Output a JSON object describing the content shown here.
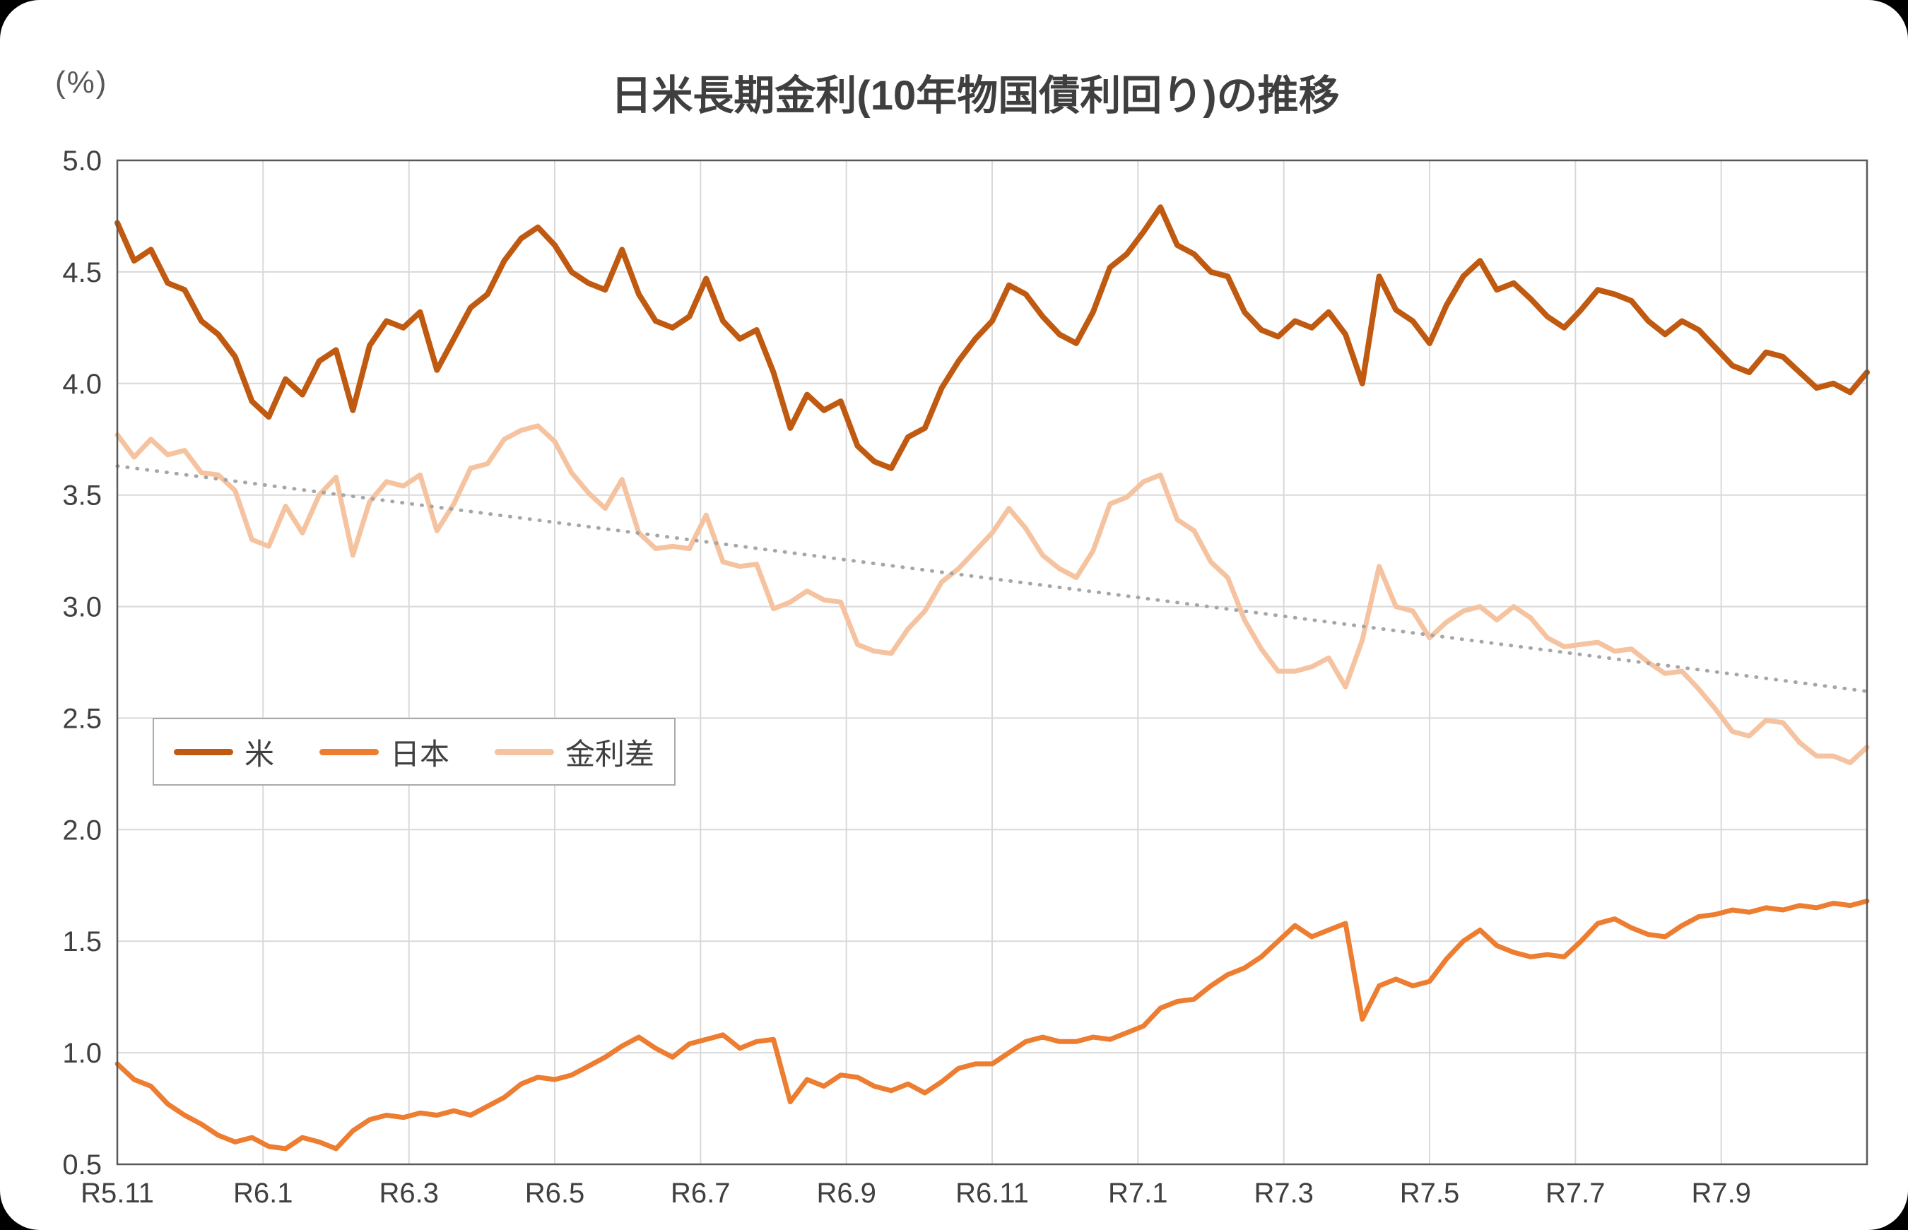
{
  "chart_data": {
    "type": "line",
    "title": "日米長期金利(10年物国債利回り)の推移",
    "ylabel_display": "(%)",
    "ylim": [
      0.5,
      5.0
    ],
    "y_tick_labels": [
      "5.0",
      "4.5",
      "4.0",
      "3.5",
      "3.0",
      "2.5",
      "2.0",
      "1.5",
      "1.0",
      "0.5"
    ],
    "x": {
      "tick_labels": [
        "R5.11",
        "R6.1",
        "R6.3",
        "R6.5",
        "R6.7",
        "R6.9",
        "R6.11",
        "R7.1",
        "R7.3",
        "R7.5",
        "R7.7",
        "R7.9"
      ],
      "tick_month_index": [
        0,
        2,
        4,
        6,
        8,
        10,
        12,
        14,
        16,
        18,
        20,
        22
      ],
      "months_total": 24
    },
    "grid": true,
    "legend_position": "inside-left-middle",
    "colors": {
      "axis": "#595959",
      "gridline": "#d9d9d9",
      "text": "#404040",
      "plot_background": "#ffffff"
    },
    "series": [
      {
        "id": "us",
        "name": "米",
        "color": "#c05a11",
        "stroke_width": 8,
        "values": [
          4.72,
          4.55,
          4.6,
          4.45,
          4.42,
          4.28,
          4.22,
          4.12,
          3.92,
          3.85,
          4.02,
          3.95,
          4.1,
          4.15,
          3.88,
          4.17,
          4.28,
          4.25,
          4.32,
          4.06,
          4.2,
          4.34,
          4.4,
          4.55,
          4.65,
          4.7,
          4.62,
          4.5,
          4.45,
          4.42,
          4.6,
          4.4,
          4.28,
          4.25,
          4.3,
          4.47,
          4.28,
          4.2,
          4.24,
          4.05,
          3.8,
          3.95,
          3.88,
          3.92,
          3.72,
          3.65,
          3.62,
          3.76,
          3.8,
          3.98,
          4.1,
          4.2,
          4.28,
          4.44,
          4.4,
          4.3,
          4.22,
          4.18,
          4.32,
          4.52,
          4.58,
          4.68,
          4.79,
          4.62,
          4.58,
          4.5,
          4.48,
          4.32,
          4.24,
          4.21,
          4.28,
          4.25,
          4.32,
          4.22,
          4.0,
          4.48,
          4.33,
          4.28,
          4.18,
          4.35,
          4.48,
          4.55,
          4.42,
          4.45,
          4.38,
          4.3,
          4.25,
          4.33,
          4.42,
          4.4,
          4.37,
          4.28,
          4.22,
          4.28,
          4.24,
          4.16,
          4.08,
          4.05,
          4.14,
          4.12,
          4.05,
          3.98,
          4.0,
          3.96,
          4.05
        ]
      },
      {
        "id": "japan",
        "name": "日本",
        "color": "#ed7d31",
        "stroke_width": 7,
        "values": [
          0.95,
          0.88,
          0.85,
          0.77,
          0.72,
          0.68,
          0.63,
          0.6,
          0.62,
          0.58,
          0.57,
          0.62,
          0.6,
          0.57,
          0.65,
          0.7,
          0.72,
          0.71,
          0.73,
          0.72,
          0.74,
          0.72,
          0.76,
          0.8,
          0.86,
          0.89,
          0.88,
          0.9,
          0.94,
          0.98,
          1.03,
          1.07,
          1.02,
          0.98,
          1.04,
          1.06,
          1.08,
          1.02,
          1.05,
          1.06,
          0.78,
          0.88,
          0.85,
          0.9,
          0.89,
          0.85,
          0.83,
          0.86,
          0.82,
          0.87,
          0.93,
          0.95,
          0.95,
          1.0,
          1.05,
          1.07,
          1.05,
          1.05,
          1.07,
          1.06,
          1.09,
          1.12,
          1.2,
          1.23,
          1.24,
          1.3,
          1.35,
          1.38,
          1.43,
          1.5,
          1.57,
          1.52,
          1.55,
          1.58,
          1.15,
          1.3,
          1.33,
          1.3,
          1.32,
          1.42,
          1.5,
          1.55,
          1.48,
          1.45,
          1.43,
          1.44,
          1.43,
          1.5,
          1.58,
          1.6,
          1.56,
          1.53,
          1.52,
          1.57,
          1.61,
          1.62,
          1.64,
          1.63,
          1.65,
          1.64,
          1.66,
          1.65,
          1.67,
          1.66,
          1.68
        ]
      },
      {
        "id": "spread",
        "name": "金利差",
        "color": "#f5c3a0",
        "stroke_width": 7,
        "values": [
          3.77,
          3.67,
          3.75,
          3.68,
          3.7,
          3.6,
          3.59,
          3.52,
          3.3,
          3.27,
          3.45,
          3.33,
          3.5,
          3.58,
          3.23,
          3.47,
          3.56,
          3.54,
          3.59,
          3.34,
          3.46,
          3.62,
          3.64,
          3.75,
          3.79,
          3.81,
          3.74,
          3.6,
          3.51,
          3.44,
          3.57,
          3.33,
          3.26,
          3.27,
          3.26,
          3.41,
          3.2,
          3.18,
          3.19,
          2.99,
          3.02,
          3.07,
          3.03,
          3.02,
          2.83,
          2.8,
          2.79,
          2.9,
          2.98,
          3.11,
          3.17,
          3.25,
          3.33,
          3.44,
          3.35,
          3.23,
          3.17,
          3.13,
          3.25,
          3.46,
          3.49,
          3.56,
          3.59,
          3.39,
          3.34,
          3.2,
          3.13,
          2.94,
          2.81,
          2.71,
          2.71,
          2.73,
          2.77,
          2.64,
          2.85,
          3.18,
          3.0,
          2.98,
          2.86,
          2.93,
          2.98,
          3.0,
          2.94,
          3.0,
          2.95,
          2.86,
          2.82,
          2.83,
          2.84,
          2.8,
          2.81,
          2.75,
          2.7,
          2.71,
          2.63,
          2.54,
          2.44,
          2.42,
          2.49,
          2.48,
          2.39,
          2.33,
          2.33,
          2.3,
          2.37
        ]
      }
    ],
    "trendline": {
      "for_series": "spread",
      "style": "dotted",
      "color": "#a6a6a6",
      "start_value": 3.63,
      "end_value": 2.62
    }
  }
}
